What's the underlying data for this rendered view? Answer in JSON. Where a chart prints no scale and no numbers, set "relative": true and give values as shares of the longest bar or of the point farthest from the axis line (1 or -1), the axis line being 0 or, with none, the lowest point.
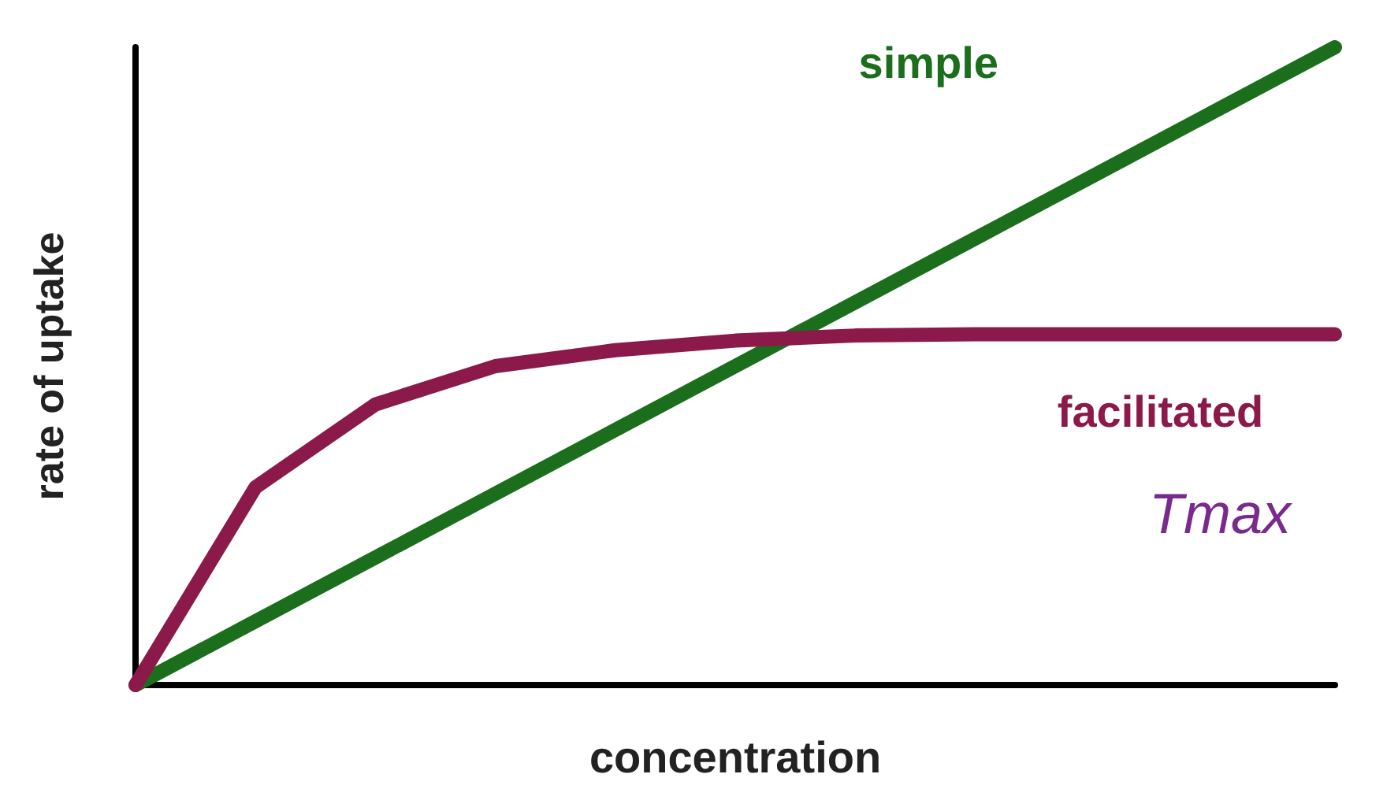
{
  "chart_data": {
    "type": "line",
    "relative": true,
    "xlabel": "concentration",
    "ylabel": "rate of uptake",
    "categories": [
      null,
      null,
      null,
      null,
      null,
      null,
      null,
      null,
      null,
      null,
      null
    ],
    "series": [
      {
        "name": "simple",
        "color": "#1b6e1b",
        "values": [
          0,
          0.1,
          0.2,
          0.3,
          0.4,
          0.5,
          0.6,
          0.7,
          0.8,
          0.9,
          1
        ]
      },
      {
        "name": "facilitated",
        "color": "#8b1a4a",
        "values": [
          0,
          0.31,
          0.44,
          0.5,
          0.525,
          0.54,
          0.548,
          0.55,
          0.55,
          0.55,
          0.55
        ]
      }
    ],
    "legend": false,
    "grid": false,
    "marker": "none",
    "line_style": "solid",
    "annotations": [
      "Tmax"
    ]
  }
}
